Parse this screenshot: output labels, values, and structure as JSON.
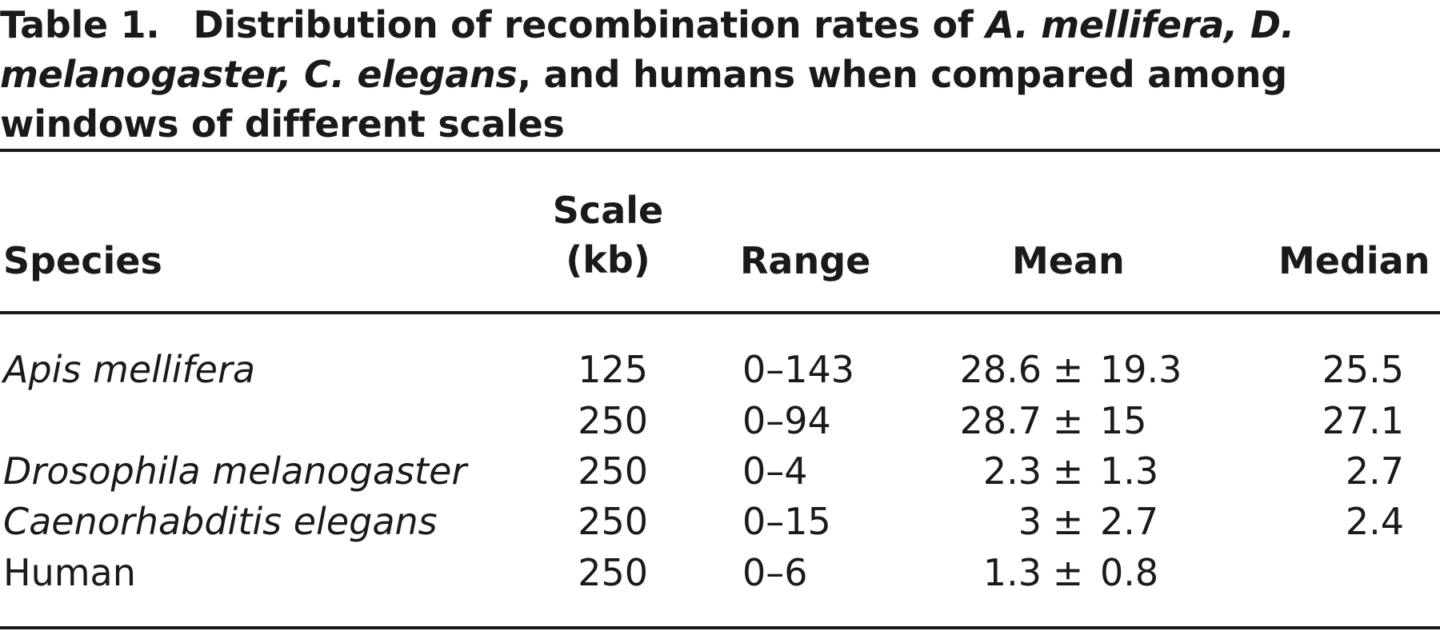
{
  "caption": {
    "label": "Table 1.",
    "text_1": "Distribution of recombination rates of ",
    "species_1": "A. mellifera, D. melanogaster, C. elegans",
    "text_2": ", and humans when compared among windows of different scales"
  },
  "headers": {
    "species": "Species",
    "scale_line1": "Scale",
    "scale_line2": "(kb)",
    "range": "Range",
    "mean": "Mean",
    "median": "Median"
  },
  "rows": [
    {
      "species": "Apis mellifera",
      "italic": true,
      "scale": "125",
      "range": "0–143",
      "mean": "28.6",
      "sd": "19.3",
      "median": "25.5"
    },
    {
      "species": "",
      "italic": true,
      "scale": "250",
      "range": "0–94",
      "mean": "28.7",
      "sd": "15",
      "median": "27.1"
    },
    {
      "species": "Drosophila melanogaster",
      "italic": true,
      "scale": "250",
      "range": "0–4",
      "mean": "2.3",
      "sd": "1.3",
      "median": "2.7"
    },
    {
      "species": "Caenorhabditis elegans",
      "italic": true,
      "scale": "250",
      "range": "0–15",
      "mean": "3",
      "sd": "2.7",
      "median": "2.4"
    },
    {
      "species": "Human",
      "italic": false,
      "scale": "250",
      "range": "0–6",
      "mean": "1.3",
      "sd": "0.8",
      "median": ""
    }
  ],
  "pm_symbol": "±"
}
